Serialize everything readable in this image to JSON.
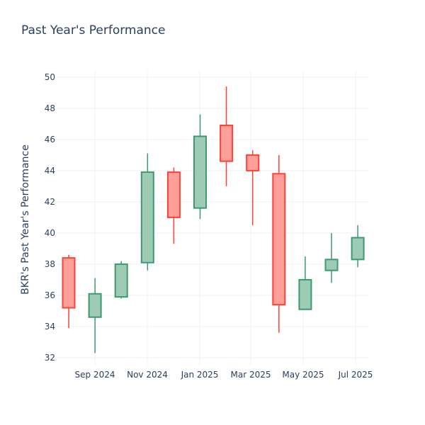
{
  "chart_data": {
    "type": "candlestick",
    "title": "Past Year's Performance",
    "ylabel": "BKR's Past Year's Performance",
    "xlabel": "",
    "ylim": [
      31.5,
      50.4
    ],
    "yticks": [
      32,
      34,
      36,
      38,
      40,
      42,
      44,
      46,
      48,
      50
    ],
    "xticks": [
      "Sep 2024",
      "Nov 2024",
      "Jan 2025",
      "Mar 2025",
      "May 2025",
      "Jul 2025"
    ],
    "grid": true,
    "increasing_color": "#3d9970",
    "increasing_fill": "#9ecbb4",
    "decreasing_color": "#ff4136",
    "decreasing_fill": "#ff9f9a",
    "candles": [
      {
        "period": "Aug 2024",
        "open": 38.4,
        "high": 38.6,
        "low": 33.9,
        "close": 35.2
      },
      {
        "period": "Sep 2024",
        "open": 34.6,
        "high": 37.1,
        "low": 32.3,
        "close": 36.1
      },
      {
        "period": "Oct 2024",
        "open": 35.9,
        "high": 38.2,
        "low": 35.8,
        "close": 38.0
      },
      {
        "period": "Nov 2024",
        "open": 38.1,
        "high": 45.1,
        "low": 37.6,
        "close": 43.9
      },
      {
        "period": "Dec 2024",
        "open": 43.9,
        "high": 44.2,
        "low": 39.3,
        "close": 41.0
      },
      {
        "period": "Jan 2025",
        "open": 41.6,
        "high": 47.6,
        "low": 40.9,
        "close": 46.2
      },
      {
        "period": "Feb 2025",
        "open": 46.9,
        "high": 49.4,
        "low": 43.0,
        "close": 44.6
      },
      {
        "period": "Mar 2025",
        "open": 45.0,
        "high": 45.3,
        "low": 40.5,
        "close": 44.0
      },
      {
        "period": "Apr 2025",
        "open": 43.8,
        "high": 45.0,
        "low": 33.6,
        "close": 35.4
      },
      {
        "period": "May 2025",
        "open": 35.1,
        "high": 38.5,
        "low": 35.1,
        "close": 37.0
      },
      {
        "period": "Jun 2025",
        "open": 37.6,
        "high": 40.0,
        "low": 36.8,
        "close": 38.3
      },
      {
        "period": "Jul 2025",
        "open": 38.3,
        "high": 40.5,
        "low": 37.8,
        "close": 39.7
      }
    ]
  }
}
